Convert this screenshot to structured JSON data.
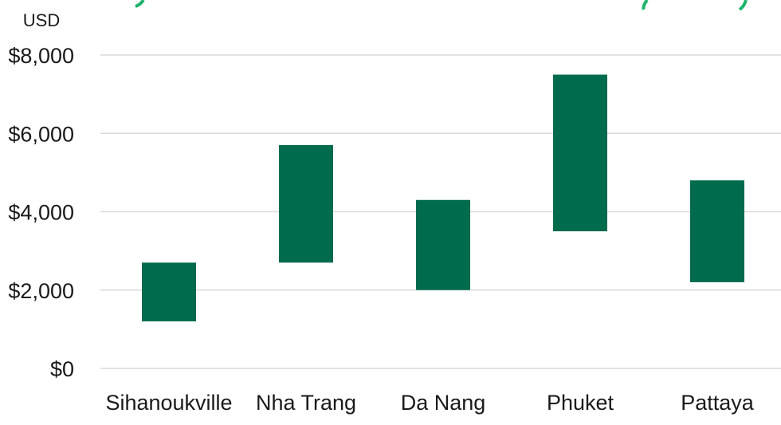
{
  "chart_data": {
    "type": "bar",
    "subtype": "floating-range",
    "unit_label": "USD",
    "categories": [
      "Sihanoukville",
      "Nha Trang",
      "Da Nang",
      "Phuket",
      "Pattaya"
    ],
    "series": [
      {
        "low": [
          1200,
          2700,
          2000,
          3500,
          2200
        ],
        "high": [
          2700,
          5700,
          4300,
          7500,
          4800
        ]
      }
    ],
    "y_ticks": [
      0,
      2000,
      4000,
      6000,
      8000
    ],
    "y_tick_labels": [
      "$0",
      "$2,000",
      "$4,000",
      "$6,000",
      "$8,000"
    ],
    "ylim": [
      0,
      8000
    ],
    "grid": true,
    "legend": "none",
    "colors": {
      "bar": "#016B4D",
      "grid": "#d9d9d9",
      "header_accent": "#1DB46C"
    }
  }
}
